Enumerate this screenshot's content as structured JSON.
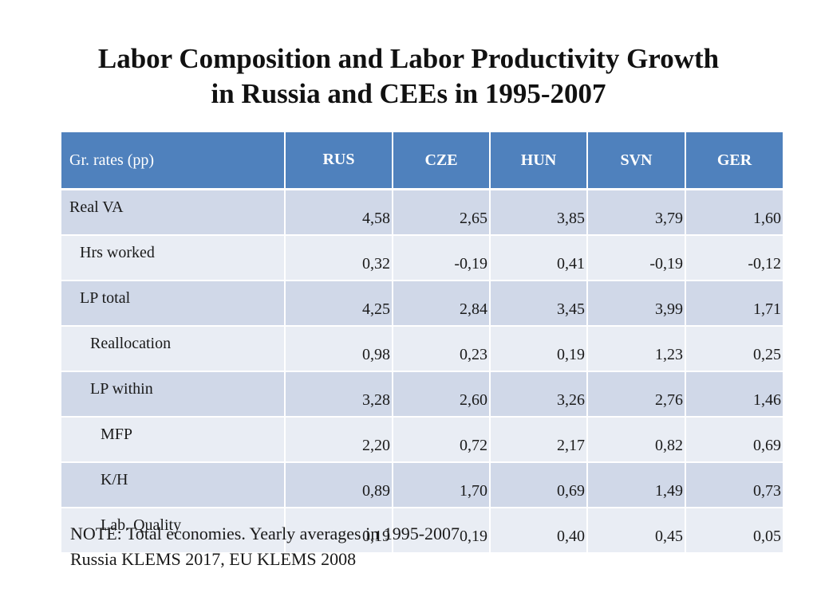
{
  "title": {
    "line1": "Labor Composition and Labor Productivity Growth",
    "line2": "in Russia and CEEs in 1995-2007"
  },
  "table": {
    "header": {
      "label": "Gr. rates (pp)",
      "columns": [
        "RUS",
        "CZE",
        "HUN",
        "SVN",
        "GER"
      ]
    },
    "rows": [
      {
        "label": "Real VA",
        "level": 0,
        "values": [
          "4,58",
          "2,65",
          "3,85",
          "3,79",
          "1,60"
        ]
      },
      {
        "label": "Hrs worked",
        "level": 1,
        "values": [
          "0,32",
          "-0,19",
          "0,41",
          "-0,19",
          "-0,12"
        ]
      },
      {
        "label": "LP total",
        "level": 1,
        "values": [
          "4,25",
          "2,84",
          "3,45",
          "3,99",
          "1,71"
        ]
      },
      {
        "label": "Reallocation",
        "level": 2,
        "values": [
          "0,98",
          "0,23",
          "0,19",
          "1,23",
          "0,25"
        ]
      },
      {
        "label": "LP within",
        "level": 2,
        "values": [
          "3,28",
          "2,60",
          "3,26",
          "2,76",
          "1,46"
        ]
      },
      {
        "label": "MFP",
        "level": 3,
        "values": [
          "2,20",
          "0,72",
          "2,17",
          "0,82",
          "0,69"
        ]
      },
      {
        "label": "K/H",
        "level": 3,
        "values": [
          "0,89",
          "1,70",
          "0,69",
          "1,49",
          "0,73"
        ]
      },
      {
        "label": "Lab. Quality",
        "level": 3,
        "values": [
          "0,19",
          "0,19",
          "0,40",
          "0,45",
          "0,05"
        ]
      }
    ]
  },
  "note": {
    "line1": "NOTE: Total economies. Yearly averages in 1995-2007",
    "line2": "Russia KLEMS 2017, EU KLEMS 2008"
  },
  "colors": {
    "header_bg": "#4f81bd",
    "row_band_dark": "#d0d8e8",
    "row_band_light": "#e9edf4"
  }
}
